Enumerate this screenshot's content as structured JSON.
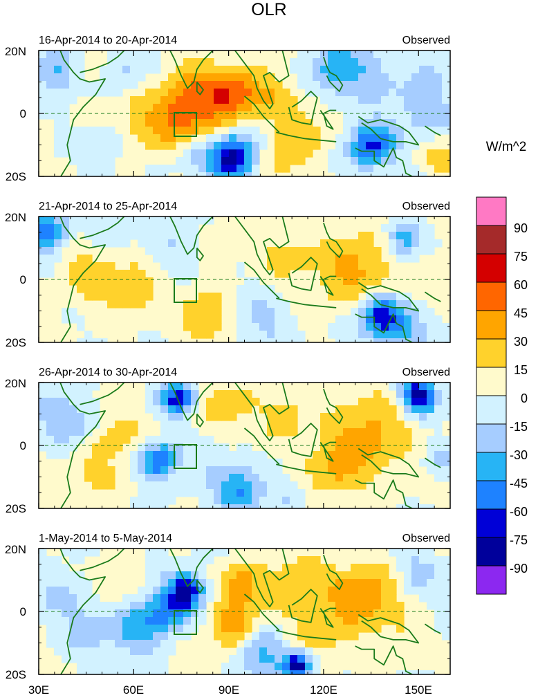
{
  "chart_data": {
    "type": "heatmap",
    "title": "OLR",
    "colorbar": {
      "label": "W/m^2",
      "tick_labels": [
        "90",
        "75",
        "60",
        "45",
        "30",
        "15",
        "0",
        "-15",
        "-30",
        "-45",
        "-60",
        "-75",
        "-90"
      ],
      "levels": [
        90,
        75,
        60,
        45,
        30,
        15,
        0,
        -15,
        -30,
        -45,
        -60,
        -75,
        -90
      ],
      "colors_top_to_bottom": [
        "#ff79c4",
        "#a52a2a",
        "#d40000",
        "#ff6600",
        "#ffa500",
        "#ffd22c",
        "#fffacc",
        "#d2f2ff",
        "#a6cdff",
        "#27b4f5",
        "#1e82ff",
        "#0000d7",
        "#00009b",
        "#8c28f0"
      ]
    },
    "x_axis": {
      "tick_labels": [
        "30E",
        "60E",
        "90E",
        "120E",
        "150E"
      ],
      "tick_values": [
        30,
        60,
        90,
        120,
        150
      ],
      "range": [
        30,
        160
      ]
    },
    "y_axis": {
      "tick_labels": [
        "20N",
        "0",
        "20S"
      ],
      "tick_values": [
        20,
        0,
        -20
      ],
      "range": [
        -20,
        20
      ]
    },
    "panels": [
      {
        "period": "16-Apr-2014 to 20-Apr-2014",
        "label": "Observed",
        "anomalies": [
          {
            "lon": 36,
            "lat": 14,
            "value": -35,
            "sigma": 5
          },
          {
            "lon": 46,
            "lat": 16,
            "value": 15,
            "sigma": 4
          },
          {
            "lon": 57,
            "lat": 14,
            "value": -20,
            "sigma": 5
          },
          {
            "lon": 82,
            "lat": 6,
            "value": 40,
            "sigma": 8
          },
          {
            "lon": 92,
            "lat": 6,
            "value": 40,
            "sigma": 5
          },
          {
            "lon": 75,
            "lat": -2,
            "value": 35,
            "sigma": 7
          },
          {
            "lon": 60,
            "lat": -4,
            "value": 20,
            "sigma": 8
          },
          {
            "lon": 103,
            "lat": 7,
            "value": 22,
            "sigma": 6
          },
          {
            "lon": 91,
            "lat": -14,
            "value": -85,
            "sigma": 5
          },
          {
            "lon": 78,
            "lat": -12,
            "value": -20,
            "sigma": 5
          },
          {
            "lon": 52,
            "lat": -10,
            "value": -20,
            "sigma": 5
          },
          {
            "lon": 124,
            "lat": 14,
            "value": -40,
            "sigma": 6
          },
          {
            "lon": 137,
            "lat": 12,
            "value": -20,
            "sigma": 6
          },
          {
            "lon": 135,
            "lat": -10,
            "value": -65,
            "sigma": 5
          },
          {
            "lon": 152,
            "lat": 2,
            "value": -30,
            "sigma": 6
          },
          {
            "lon": 113,
            "lat": -6,
            "value": 22,
            "sigma": 7
          },
          {
            "lon": 105,
            "lat": -17,
            "value": 18,
            "sigma": 5
          },
          {
            "lon": 158,
            "lat": -14,
            "value": 25,
            "sigma": 4
          },
          {
            "lon": 155,
            "lat": 17,
            "value": -15,
            "sigma": 5
          }
        ]
      },
      {
        "period": "21-Apr-2014 to 25-Apr-2014",
        "label": "Observed",
        "anomalies": [
          {
            "lon": 33,
            "lat": 15,
            "value": -65,
            "sigma": 4
          },
          {
            "lon": 46,
            "lat": 2,
            "value": 22,
            "sigma": 7
          },
          {
            "lon": 60,
            "lat": -4,
            "value": 20,
            "sigma": 7
          },
          {
            "lon": 83,
            "lat": -12,
            "value": 30,
            "sigma": 6
          },
          {
            "lon": 73,
            "lat": 10,
            "value": -15,
            "sigma": 5
          },
          {
            "lon": 130,
            "lat": 3,
            "value": 35,
            "sigma": 9
          },
          {
            "lon": 108,
            "lat": 8,
            "value": 20,
            "sigma": 6
          },
          {
            "lon": 138,
            "lat": -12,
            "value": -75,
            "sigma": 5
          },
          {
            "lon": 148,
            "lat": -16,
            "value": -25,
            "sigma": 5
          },
          {
            "lon": 100,
            "lat": -13,
            "value": -20,
            "sigma": 6
          },
          {
            "lon": 145,
            "lat": 13,
            "value": -40,
            "sigma": 4
          },
          {
            "lon": 90,
            "lat": 13,
            "value": 15,
            "sigma": 5
          },
          {
            "lon": 52,
            "lat": 16,
            "value": -15,
            "sigma": 5
          },
          {
            "lon": 155,
            "lat": 0,
            "value": 15,
            "sigma": 5
          }
        ]
      },
      {
        "period": "26-Apr-2014 to 30-Apr-2014",
        "label": "Observed",
        "anomalies": [
          {
            "lon": 74,
            "lat": 15,
            "value": -70,
            "sigma": 4
          },
          {
            "lon": 150,
            "lat": 16,
            "value": -85,
            "sigma": 4
          },
          {
            "lon": 68,
            "lat": -5,
            "value": -65,
            "sigma": 4
          },
          {
            "lon": 93,
            "lat": -15,
            "value": -50,
            "sigma": 5
          },
          {
            "lon": 41,
            "lat": 6,
            "value": -25,
            "sigma": 5
          },
          {
            "lon": 35,
            "lat": 12,
            "value": -20,
            "sigma": 5
          },
          {
            "lon": 135,
            "lat": 4,
            "value": 35,
            "sigma": 9
          },
          {
            "lon": 88,
            "lat": 13,
            "value": 28,
            "sigma": 6
          },
          {
            "lon": 108,
            "lat": 10,
            "value": 22,
            "sigma": 6
          },
          {
            "lon": 55,
            "lat": 4,
            "value": 20,
            "sigma": 7
          },
          {
            "lon": 123,
            "lat": -8,
            "value": 30,
            "sigma": 7
          },
          {
            "lon": 47,
            "lat": -10,
            "value": 18,
            "sigma": 6
          },
          {
            "lon": 83,
            "lat": -4,
            "value": -15,
            "sigma": 5
          },
          {
            "lon": 110,
            "lat": -15,
            "value": -15,
            "sigma": 5
          },
          {
            "lon": 157,
            "lat": -4,
            "value": -15,
            "sigma": 4
          }
        ]
      },
      {
        "period": "1-May-2014 to 5-May-2014",
        "label": "Observed",
        "anomalies": [
          {
            "lon": 77,
            "lat": 7,
            "value": -70,
            "sigma": 4
          },
          {
            "lon": 72,
            "lat": 1,
            "value": -40,
            "sigma": 5
          },
          {
            "lon": 62,
            "lat": -4,
            "value": -40,
            "sigma": 7
          },
          {
            "lon": 45,
            "lat": -5,
            "value": -25,
            "sigma": 5
          },
          {
            "lon": 112,
            "lat": -17,
            "value": -80,
            "sigma": 3
          },
          {
            "lon": 100,
            "lat": -14,
            "value": -35,
            "sigma": 6
          },
          {
            "lon": 93,
            "lat": 8,
            "value": 40,
            "sigma": 5
          },
          {
            "lon": 92,
            "lat": -5,
            "value": 40,
            "sigma": 5
          },
          {
            "lon": 133,
            "lat": 5,
            "value": 45,
            "sigma": 7
          },
          {
            "lon": 112,
            "lat": 8,
            "value": 28,
            "sigma": 8
          },
          {
            "lon": 120,
            "lat": -7,
            "value": 22,
            "sigma": 6
          },
          {
            "lon": 55,
            "lat": 8,
            "value": 18,
            "sigma": 6
          },
          {
            "lon": 37,
            "lat": 6,
            "value": -20,
            "sigma": 5
          },
          {
            "lon": 150,
            "lat": 13,
            "value": -20,
            "sigma": 5
          },
          {
            "lon": 145,
            "lat": -8,
            "value": 15,
            "sigma": 5
          },
          {
            "lon": 80,
            "lat": -14,
            "value": 15,
            "sigma": 5
          }
        ]
      }
    ]
  }
}
